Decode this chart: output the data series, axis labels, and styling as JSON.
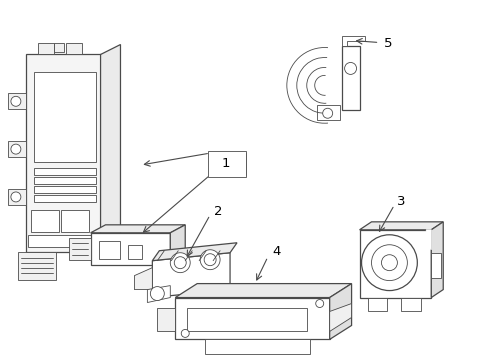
{
  "background_color": "#ffffff",
  "line_color": "#4a4a4a",
  "label_color": "#000000",
  "fig_width": 4.89,
  "fig_height": 3.6,
  "dpi": 100
}
